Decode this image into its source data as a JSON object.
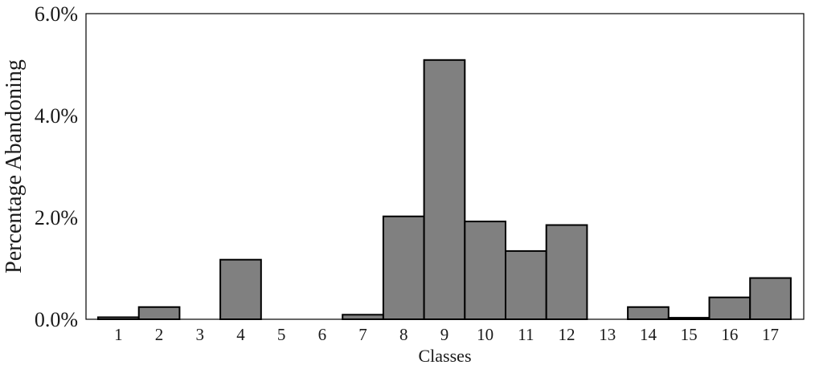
{
  "chart_data": {
    "type": "bar",
    "xlabel": "Classes",
    "ylabel": "Percentage Abandoning",
    "categories": [
      "1",
      "2",
      "3",
      "4",
      "5",
      "6",
      "7",
      "8",
      "9",
      "10",
      "11",
      "12",
      "13",
      "14",
      "15",
      "16",
      "17"
    ],
    "values": [
      0.04,
      0.24,
      0.0,
      1.17,
      0.0,
      0.0,
      0.09,
      2.02,
      5.09,
      1.92,
      1.34,
      1.85,
      0.0,
      0.24,
      0.03,
      0.43,
      0.81
    ],
    "value_unit": "%",
    "ylim": [
      0,
      6.0
    ],
    "yticks": [
      "0.0%",
      "2.0%",
      "4.0%",
      "6.0%"
    ],
    "ytick_values": [
      0,
      2,
      4,
      6
    ],
    "grid": false,
    "bar_color": "#808080",
    "edge_color": "#000000"
  }
}
